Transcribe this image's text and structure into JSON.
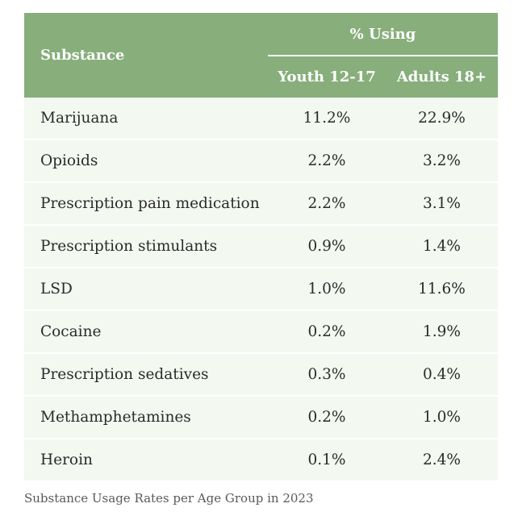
{
  "table": {
    "headers": {
      "substance": "Substance",
      "group": "% Using",
      "youth": "Youth 12-17",
      "adults": "Adults 18+"
    },
    "rows": [
      {
        "substance": "Marijuana",
        "youth": "11.2%",
        "adults": "22.9%"
      },
      {
        "substance": "Opioids",
        "youth": "2.2%",
        "adults": "3.2%"
      },
      {
        "substance": "Prescription pain medication",
        "youth": "2.2%",
        "adults": "3.1%"
      },
      {
        "substance": "Prescription stimulants",
        "youth": "0.9%",
        "adults": "1.4%"
      },
      {
        "substance": "LSD",
        "youth": "1.0%",
        "adults": "11.6%"
      },
      {
        "substance": "Cocaine",
        "youth": "0.2%",
        "adults": "1.9%"
      },
      {
        "substance": "Prescription sedatives",
        "youth": "0.3%",
        "adults": "0.4%"
      },
      {
        "substance": "Methamphetamines",
        "youth": "0.2%",
        "adults": "1.0%"
      },
      {
        "substance": "Heroin",
        "youth": "0.1%",
        "adults": "2.4%"
      }
    ],
    "colors": {
      "header_bg": "#87ae7b",
      "row_bg": "#f3f8f1"
    }
  },
  "caption": "Substance Usage Rates per Age Group in 2023"
}
